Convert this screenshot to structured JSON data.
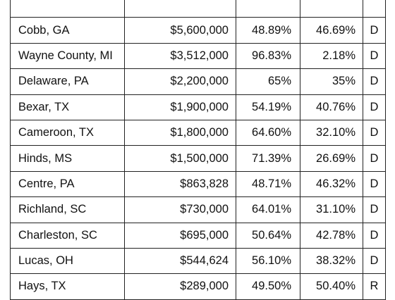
{
  "table": {
    "rows": [
      {
        "county": "",
        "amount": "",
        "pct1": "",
        "pct2": "",
        "party": ""
      },
      {
        "county": "Cobb, GA",
        "amount": "$5,600,000",
        "pct1": "48.89%",
        "pct2": "46.69%",
        "party": "D"
      },
      {
        "county": "Wayne County, MI",
        "amount": "$3,512,000",
        "pct1": "96.83%",
        "pct2": "2.18%",
        "party": "D"
      },
      {
        "county": "Delaware, PA",
        "amount": "$2,200,000",
        "pct1": "65%",
        "pct2": "35%",
        "party": "D"
      },
      {
        "county": "Bexar, TX",
        "amount": "$1,900,000",
        "pct1": "54.19%",
        "pct2": "40.76%",
        "party": "D"
      },
      {
        "county": "Cameroon, TX",
        "amount": "$1,800,000",
        "pct1": "64.60%",
        "pct2": "32.10%",
        "party": "D"
      },
      {
        "county": "Hinds, MS",
        "amount": "$1,500,000",
        "pct1": "71.39%",
        "pct2": "26.69%",
        "party": "D"
      },
      {
        "county": "Centre, PA",
        "amount": "$863,828",
        "pct1": "48.71%",
        "pct2": "46.32%",
        "party": "D"
      },
      {
        "county": "Richland, SC",
        "amount": "$730,000",
        "pct1": "64.01%",
        "pct2": "31.10%",
        "party": "D"
      },
      {
        "county": "Charleston, SC",
        "amount": "$695,000",
        "pct1": "50.64%",
        "pct2": "42.78%",
        "party": "D"
      },
      {
        "county": "Lucas, OH",
        "amount": "$544,624",
        "pct1": "56.10%",
        "pct2": "38.32%",
        "party": "D"
      },
      {
        "county": "Hays, TX",
        "amount": "$289,000",
        "pct1": "49.50%",
        "pct2": "50.40%",
        "party": "R"
      }
    ]
  }
}
